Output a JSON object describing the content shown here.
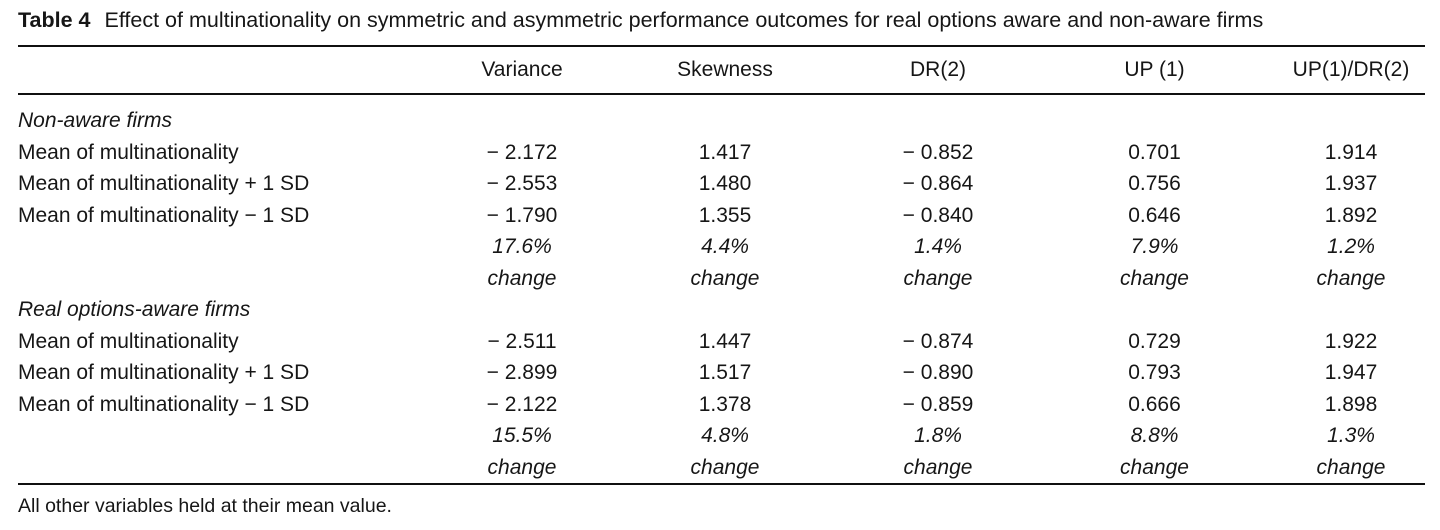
{
  "title": {
    "label": "Table 4",
    "text": "Effect of multinationality on symmetric and asymmetric performance outcomes for real options aware and non-aware firms"
  },
  "table": {
    "columns": [
      "Variance",
      "Skewness",
      "DR(2)",
      "UP (1)",
      "UP(1)/DR(2)"
    ],
    "sections": [
      {
        "heading": "Non-aware firms",
        "rows": [
          {
            "label": "Mean of multinationality",
            "values": [
              "− 2.172",
              "1.417",
              "− 0.852",
              "0.701",
              "1.914"
            ]
          },
          {
            "label": "Mean of multinationality + 1 SD",
            "values": [
              "− 2.553",
              "1.480",
              "− 0.864",
              "0.756",
              "1.937"
            ]
          },
          {
            "label": "Mean of multinationality − 1 SD",
            "values": [
              "− 1.790",
              "1.355",
              "− 0.840",
              "0.646",
              "1.892"
            ]
          }
        ],
        "percent_change": [
          "17.6%",
          "4.4%",
          "1.4%",
          "7.9%",
          "1.2%"
        ],
        "change_label": "change"
      },
      {
        "heading": "Real options-aware firms",
        "rows": [
          {
            "label": "Mean of multinationality",
            "values": [
              "− 2.511",
              "1.447",
              "− 0.874",
              "0.729",
              "1.922"
            ]
          },
          {
            "label": "Mean of multinationality + 1 SD",
            "values": [
              "− 2.899",
              "1.517",
              "− 0.890",
              "0.793",
              "1.947"
            ]
          },
          {
            "label": "Mean of multinationality − 1 SD",
            "values": [
              "− 2.122",
              "1.378",
              "− 0.859",
              "0.666",
              "1.898"
            ]
          }
        ],
        "percent_change": [
          "15.5%",
          "4.8%",
          "1.8%",
          "8.8%",
          "1.3%"
        ],
        "change_label": "change"
      }
    ]
  },
  "footnote": "All other variables held at their mean value."
}
